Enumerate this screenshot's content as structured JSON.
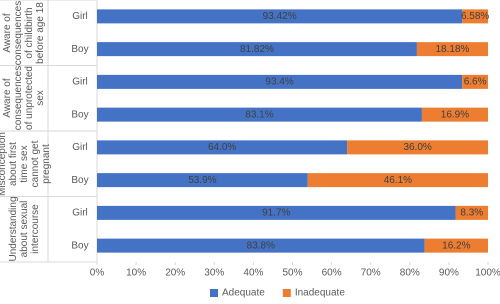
{
  "chart_data": {
    "type": "stacked-bar-horizontal",
    "groups": [
      {
        "label": "Aware of consequences of childbirth before age 18",
        "categories": [
          "Girl",
          "Boy"
        ]
      },
      {
        "label": "Aware of consequences of unprotected sex",
        "categories": [
          "Girl",
          "Boy"
        ]
      },
      {
        "label": "Misconception about first time sex cannot get pregnant",
        "categories": [
          "Girl",
          "Boy"
        ]
      },
      {
        "label": "Understanding about sexual intercourse",
        "categories": [
          "Girl",
          "Boy"
        ]
      }
    ],
    "series": [
      {
        "name": "Adequate",
        "color": "#4472c4",
        "values": [
          93.42,
          81.82,
          93.4,
          83.1,
          64,
          53.9,
          91.7,
          83.8
        ],
        "value_labels": [
          "93.42%",
          "81.82%",
          "93.4%",
          "83.1%",
          "64.0%",
          "53.9%",
          "91.7%",
          "83.8%"
        ]
      },
      {
        "name": "Inadequate",
        "color": "#ed7d31",
        "values": [
          6.58,
          18.18,
          6.6,
          16.9,
          36,
          46.1,
          8.3,
          16.2
        ],
        "value_labels": [
          "6.58%",
          "18.18%",
          "6.6%",
          "16.9%",
          "36.0%",
          "46.1%",
          "8.3%",
          "16.2%"
        ]
      }
    ],
    "xlim": [
      0,
      100
    ],
    "xticks": [
      {
        "value": 0,
        "label": "0%"
      },
      {
        "value": 10,
        "label": "10%"
      },
      {
        "value": 20,
        "label": "20%"
      },
      {
        "value": 30,
        "label": "30%"
      },
      {
        "value": 40,
        "label": "40%"
      },
      {
        "value": 50,
        "label": "50%"
      },
      {
        "value": 60,
        "label": "60%"
      },
      {
        "value": 70,
        "label": "70%"
      },
      {
        "value": 80,
        "label": "80%"
      },
      {
        "value": 90,
        "label": "90%"
      },
      {
        "value": 100,
        "label": "100%"
      }
    ],
    "legend": "bottom"
  }
}
